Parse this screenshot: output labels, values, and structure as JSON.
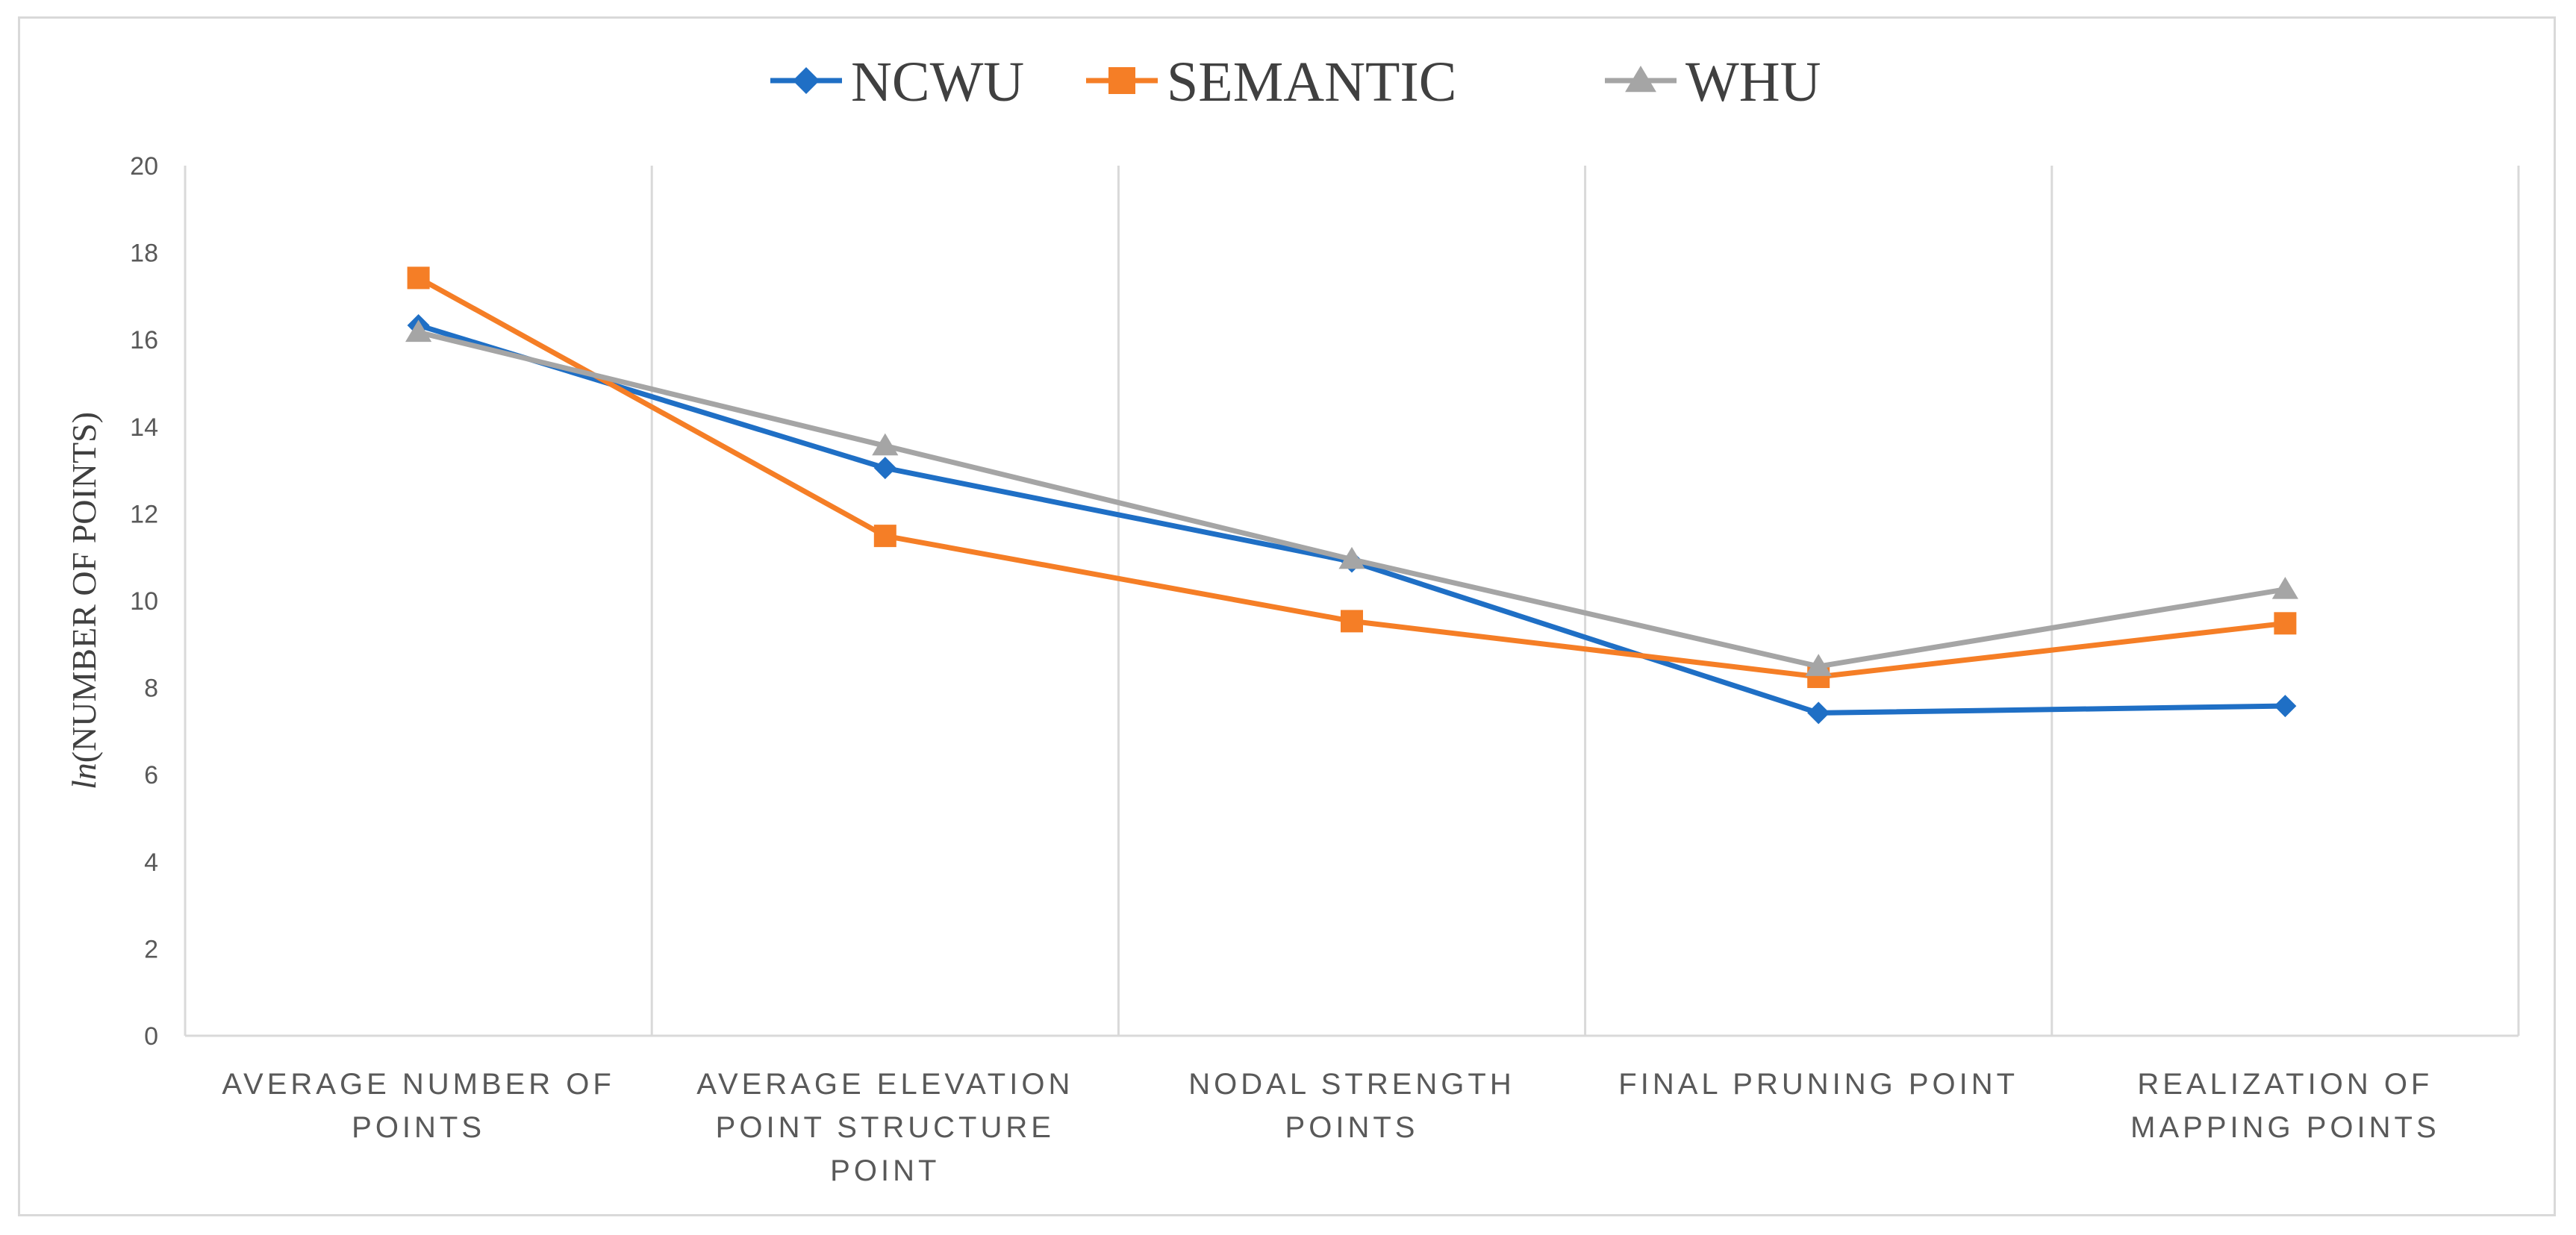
{
  "chart_data": {
    "type": "line",
    "title": "",
    "xlabel": "",
    "ylabel": {
      "italic_part": "ln",
      "rest": "(NUMBER OF POINTS)"
    },
    "ylim": [
      0,
      20
    ],
    "yticks": [
      0,
      2,
      4,
      6,
      8,
      10,
      12,
      14,
      16,
      18,
      20
    ],
    "grid": "vertical",
    "legend_position": "top",
    "categories": [
      [
        "AVERAGE NUMBER OF",
        "POINTS"
      ],
      [
        "AVERAGE ELEVATION",
        "POINT STRUCTURE",
        "POINT"
      ],
      [
        "NODAL STRENGTH",
        "POINTS"
      ],
      [
        "FINAL PRUNING POINT"
      ],
      [
        "REALIZATION OF",
        "MAPPING POINTS"
      ]
    ],
    "series": [
      {
        "name": "NCWU",
        "color": "#1f6fc5",
        "marker": "diamond",
        "values": [
          16.33,
          13.05,
          10.9,
          7.42,
          7.58
        ]
      },
      {
        "name": "SEMANTIC",
        "color": "#f57e26",
        "marker": "square",
        "values": [
          17.42,
          11.49,
          9.53,
          8.25,
          9.48
        ]
      },
      {
        "name": "WHU",
        "color": "#a5a5a5",
        "marker": "triangle",
        "values": [
          16.17,
          13.56,
          10.95,
          8.49,
          10.26
        ]
      }
    ],
    "colors": {
      "grid": "#d9d9d9",
      "axis": "#d9d9d9",
      "frame": "#d9d9d9"
    }
  }
}
